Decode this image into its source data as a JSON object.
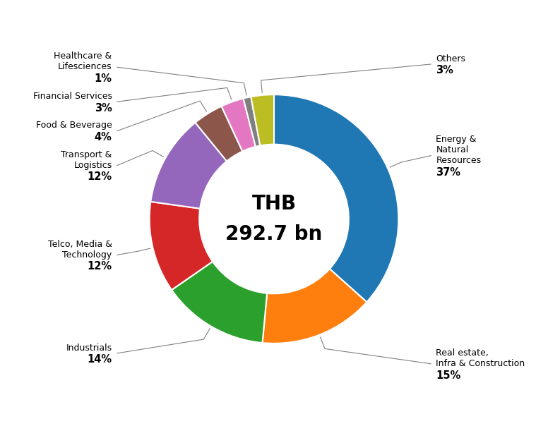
{
  "chart_data": {
    "type": "donut",
    "categories": [
      "Energy &\nNatural\nResources",
      "Real estate,\nInfra & Construction",
      "Industrials",
      "Telco, Media &\nTechnology",
      "Transport &\nLogistics",
      "Food & Beverage",
      "Financial Services",
      "Healthcare &\nLifesciences",
      "Others"
    ],
    "values": [
      37,
      15,
      14,
      12,
      12,
      4,
      3,
      1,
      3
    ],
    "value_labels": [
      "37%",
      "15%",
      "14%",
      "12%",
      "12%",
      "4%",
      "3%",
      "1%",
      "3%"
    ],
    "data_labels": true,
    "annotations": [
      "THB",
      "292.7 bn"
    ]
  }
}
